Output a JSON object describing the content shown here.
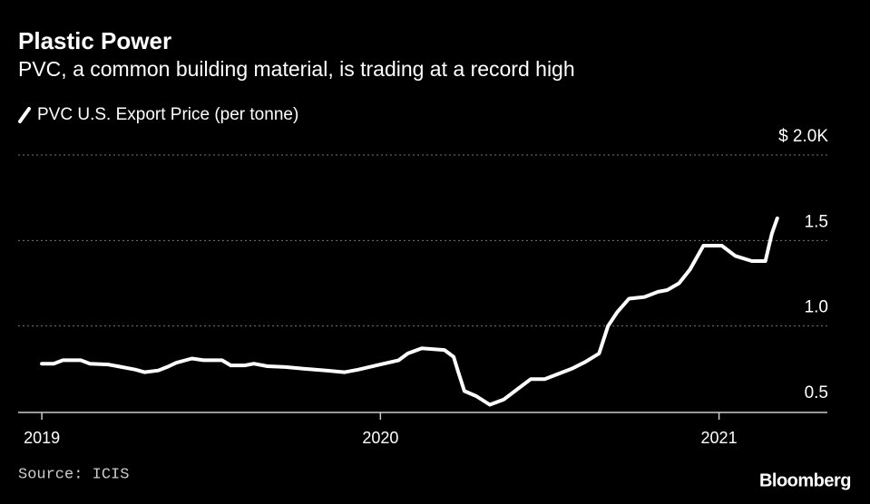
{
  "chart_data": {
    "type": "line",
    "title": "Plastic Power",
    "subtitle": "PVC, a common building material, is trading at a record high",
    "source": "Source: ICIS",
    "brand": "Bloomberg",
    "x": [
      2019.0,
      2019.035,
      2019.062,
      2019.115,
      2019.142,
      2019.196,
      2019.236,
      2019.277,
      2019.303,
      2019.344,
      2019.37,
      2019.397,
      2019.443,
      2019.478,
      2019.532,
      2019.558,
      2019.599,
      2019.626,
      2019.666,
      2019.719,
      2019.773,
      2019.84,
      2019.894,
      2019.934,
      2020.0,
      2020.054,
      2020.081,
      2020.122,
      2020.189,
      2020.216,
      2020.23,
      2020.248,
      2020.283,
      2020.323,
      2020.364,
      2020.404,
      2020.444,
      2020.485,
      2020.525,
      2020.565,
      2020.605,
      2020.646,
      2020.672,
      2020.699,
      2020.734,
      2020.78,
      2020.82,
      2020.847,
      2020.882,
      2020.914,
      2020.954,
      2021.008,
      2021.048,
      2021.097,
      2021.137,
      2021.156,
      2021.172
    ],
    "series": [
      {
        "name": "PVC U.S. Export Price (per tonne)",
        "color": "#ffffff",
        "values": [
          0.78,
          0.78,
          0.8,
          0.8,
          0.78,
          0.775,
          0.76,
          0.745,
          0.73,
          0.74,
          0.76,
          0.785,
          0.81,
          0.8,
          0.8,
          0.77,
          0.77,
          0.78,
          0.765,
          0.76,
          0.75,
          0.74,
          0.73,
          0.745,
          0.775,
          0.8,
          0.84,
          0.87,
          0.86,
          0.82,
          0.73,
          0.62,
          0.59,
          0.54,
          0.57,
          0.63,
          0.69,
          0.69,
          0.72,
          0.75,
          0.79,
          0.84,
          1.0,
          1.08,
          1.16,
          1.17,
          1.2,
          1.21,
          1.25,
          1.33,
          1.47,
          1.47,
          1.41,
          1.38,
          1.38,
          1.54,
          1.63
        ]
      }
    ],
    "xlim": [
      2018.93,
      2021.32
    ],
    "xticks": [
      2019,
      2020,
      2021
    ],
    "ylim": [
      0.5,
      2.0
    ],
    "yticks": [
      0.5,
      {
        "value": 1,
        "label": "1.0"
      },
      1.5,
      {
        "value": 2,
        "label": "$ 2.0K"
      }
    ],
    "grid": true
  }
}
